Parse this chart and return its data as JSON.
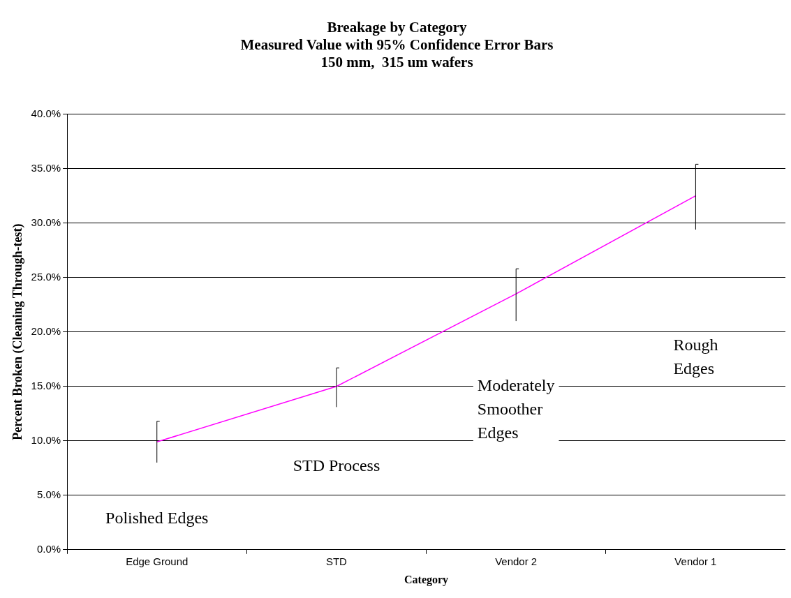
{
  "chart_data": {
    "type": "line",
    "title": "Breakage by Category\nMeasured Value with 95% Confidence Error Bars\n150 mm,  315 um wafers",
    "xlabel": "Category",
    "ylabel": "Percent Broken (Cleaning Through-test)",
    "categories": [
      "Edge Ground",
      "STD",
      "Vendor 2",
      "Vendor 1"
    ],
    "series": [
      {
        "color": "#ff00ff",
        "values": [
          9.9,
          15.0,
          23.5,
          32.5
        ],
        "errors": [
          [
            8.0,
            11.8
          ],
          [
            13.1,
            16.7
          ],
          [
            21.0,
            25.8
          ],
          [
            29.4,
            35.4
          ]
        ]
      }
    ],
    "ylim": [
      0,
      40
    ],
    "yticks": [
      {
        "value": 0,
        "label": "0.0%"
      },
      {
        "value": 5,
        "label": "5.0%"
      },
      {
        "value": 10,
        "label": "10.0%"
      },
      {
        "value": 15,
        "label": "15.0%"
      },
      {
        "value": 20,
        "label": "20.0%"
      },
      {
        "value": 25,
        "label": "25.0%"
      },
      {
        "value": 30,
        "label": "30.0%"
      },
      {
        "value": 35,
        "label": "35.0%"
      },
      {
        "value": 40,
        "label": "40.0%"
      }
    ],
    "grid": "y",
    "legend": false,
    "marker": "none",
    "line_style": "solid",
    "annotations": [
      "Polished Edges",
      "STD Process",
      "Moderately\nSmoother\nEdges",
      "Rough\nEdges"
    ]
  }
}
